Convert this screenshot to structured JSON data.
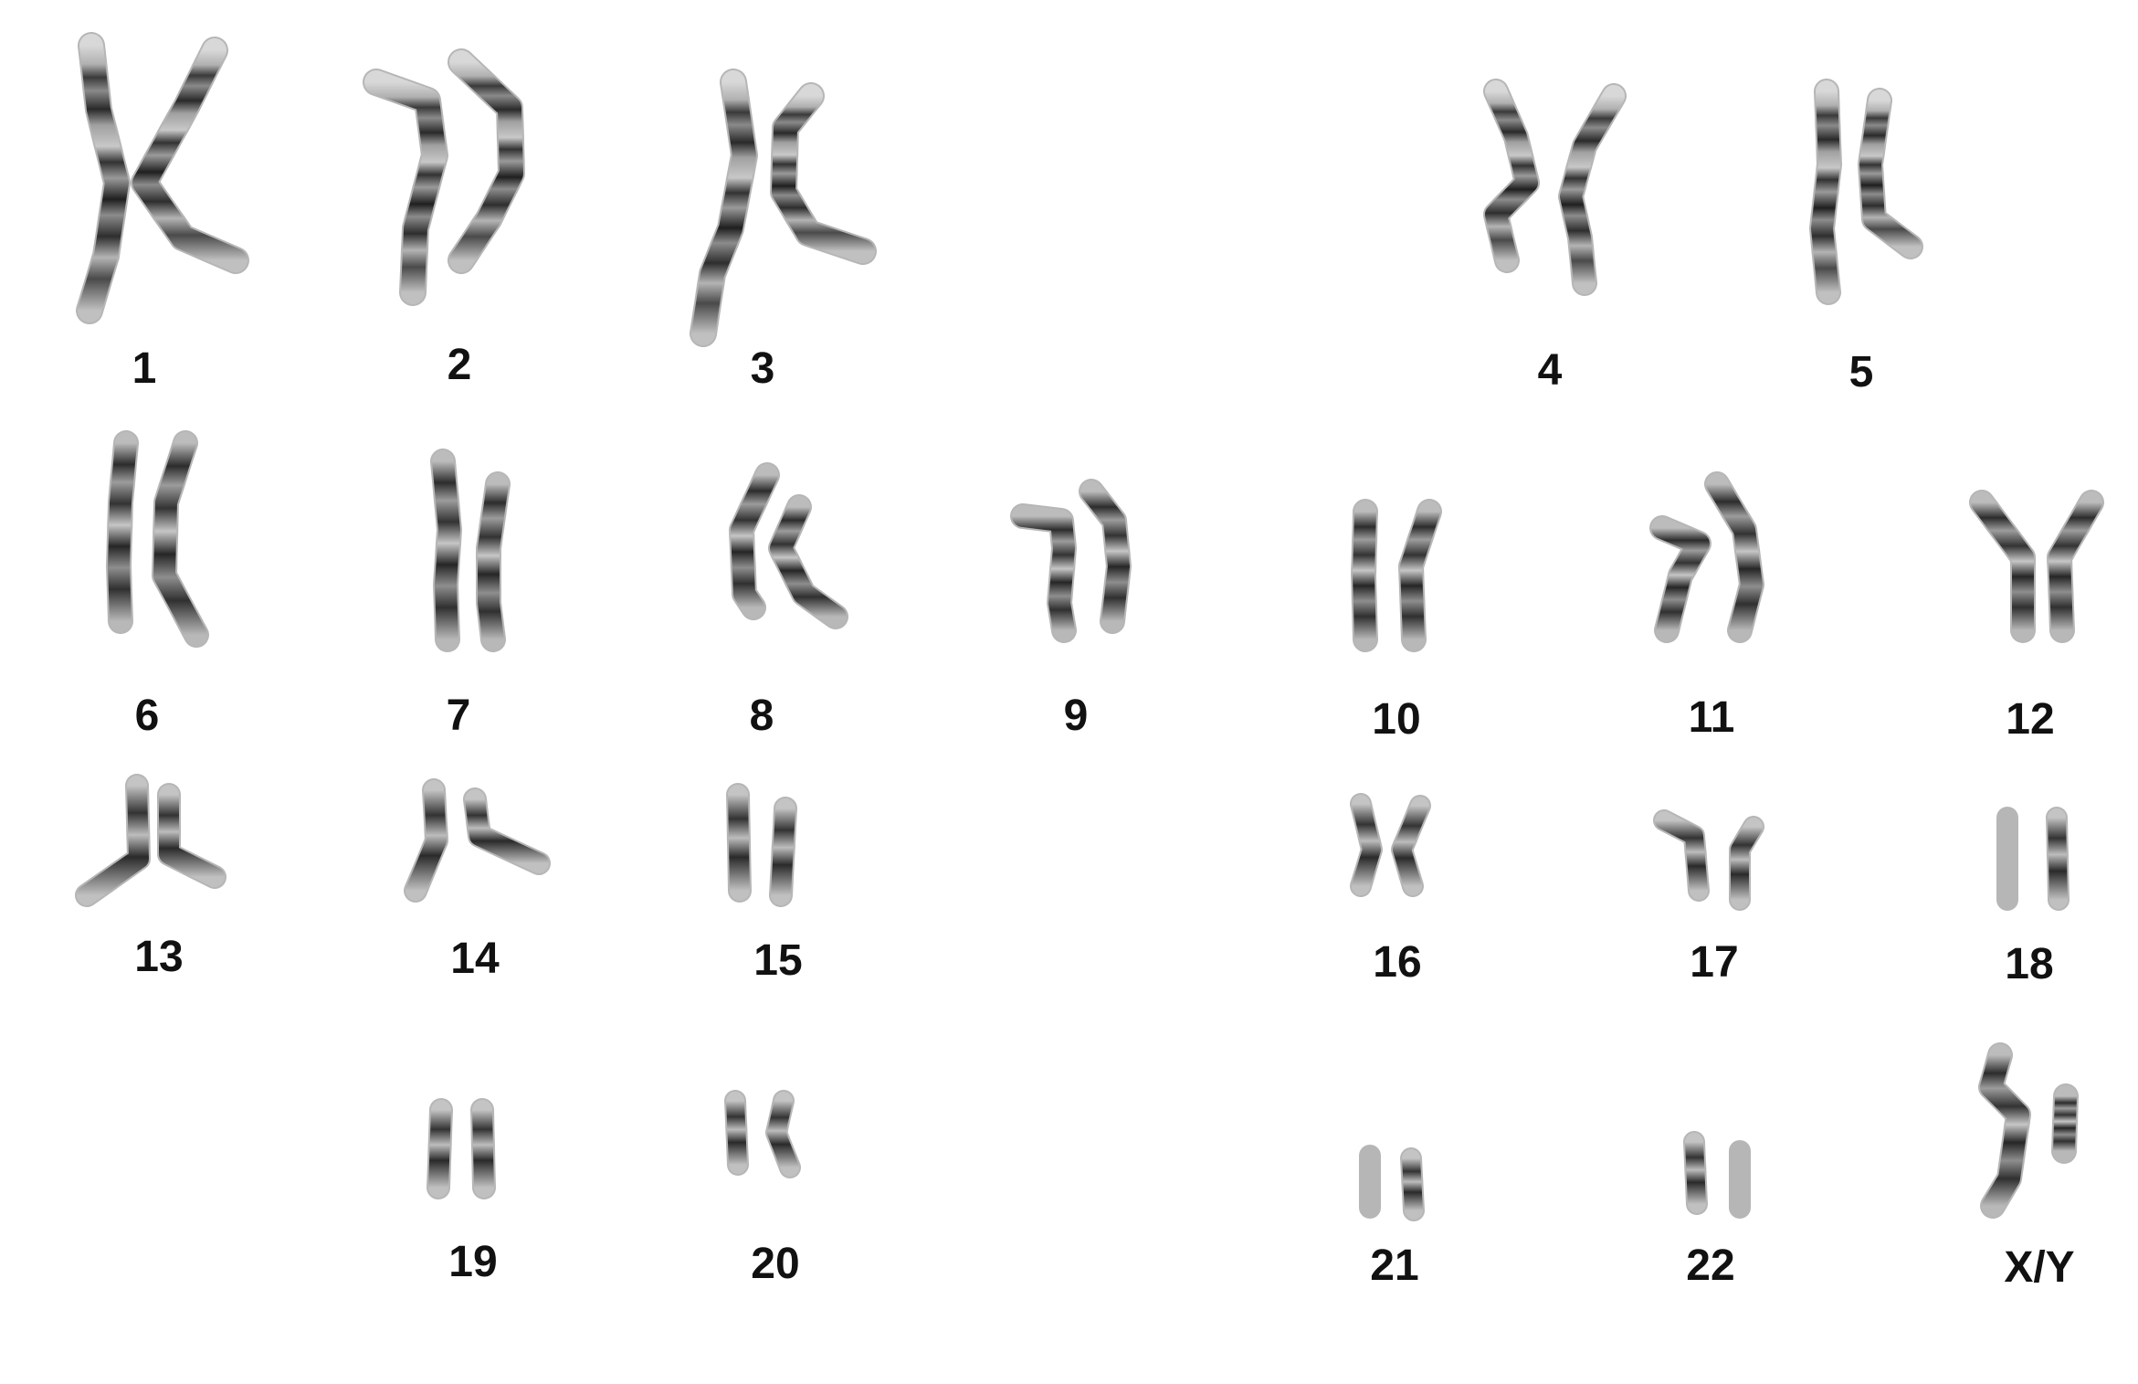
{
  "karyotype": {
    "labels": [
      "1",
      "2",
      "3",
      "4",
      "5",
      "6",
      "7",
      "8",
      "9",
      "10",
      "11",
      "12",
      "13",
      "14",
      "15",
      "16",
      "17",
      "18",
      "19",
      "20",
      "21",
      "22",
      "X/Y"
    ],
    "colors": {
      "band_dark": "#1a1a1a",
      "band_mid": "#555555",
      "band_light": "#c8c8c8",
      "chromatid_base": "#9a9a9a",
      "label": "#111111"
    }
  }
}
